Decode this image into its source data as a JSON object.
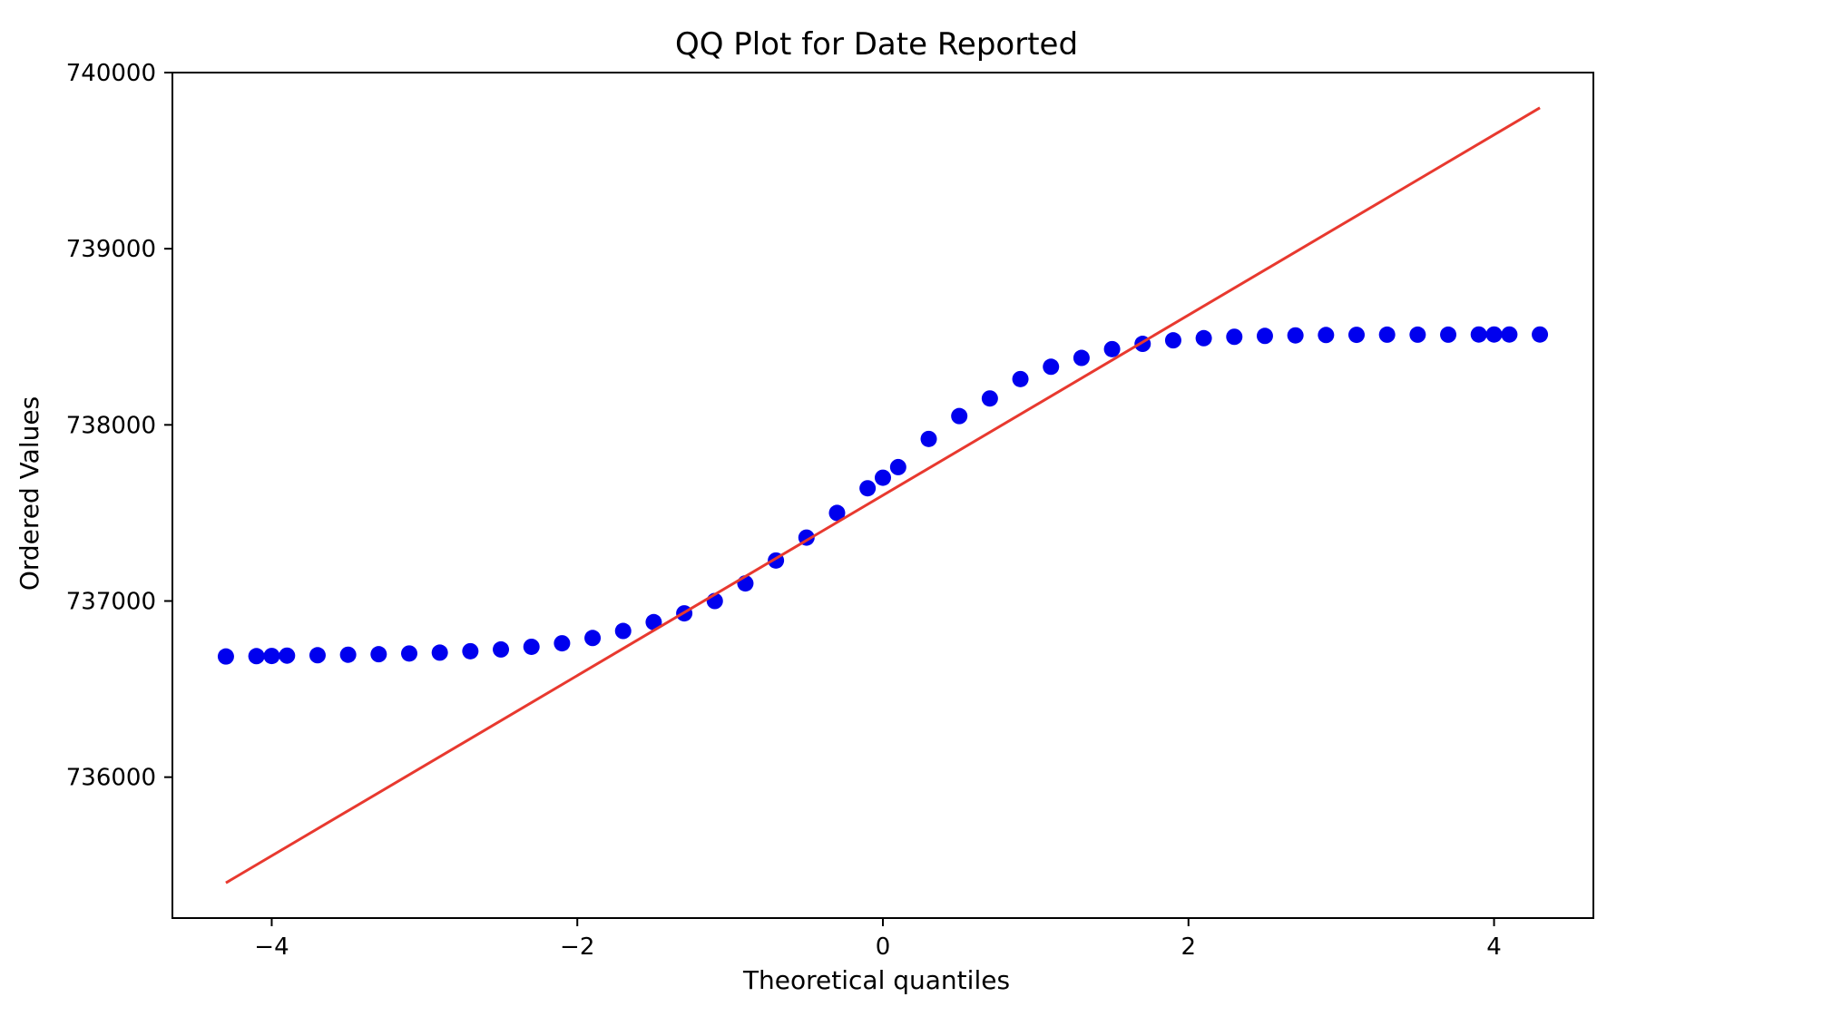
{
  "chart_data": {
    "type": "scatter",
    "title": "QQ Plot for Date Reported",
    "xlabel": "Theoretical quantiles",
    "ylabel": "Ordered Values",
    "xlim": [
      -4.65,
      4.65
    ],
    "ylim": [
      735200,
      740000
    ],
    "xticks": [
      -4,
      -2,
      0,
      2,
      4
    ],
    "xtick_labels": [
      "−4",
      "−2",
      "0",
      "2",
      "4"
    ],
    "yticks": [
      736000,
      737000,
      738000,
      739000,
      740000
    ],
    "ytick_labels": [
      "736000",
      "737000",
      "738000",
      "739000",
      "740000"
    ],
    "grid": false,
    "legend": "none",
    "series": [
      {
        "kind": "points",
        "color": "#0000ee",
        "x": [
          -4.3,
          -4.1,
          -4.0,
          -3.9,
          -3.7,
          -3.5,
          -3.3,
          -3.1,
          -2.9,
          -2.7,
          -2.5,
          -2.3,
          -2.1,
          -1.9,
          -1.7,
          -1.5,
          -1.3,
          -1.1,
          -0.9,
          -0.7,
          -0.5,
          -0.3,
          -0.1,
          0.0,
          0.1,
          0.3,
          0.5,
          0.7,
          0.9,
          1.1,
          1.3,
          1.5,
          1.7,
          1.9,
          2.1,
          2.3,
          2.5,
          2.7,
          2.9,
          3.1,
          3.3,
          3.5,
          3.7,
          3.9,
          4.0,
          4.1,
          4.3
        ],
        "y": [
          736685,
          736687,
          736688,
          736690,
          736692,
          736695,
          736698,
          736702,
          736707,
          736715,
          736725,
          736740,
          736760,
          736790,
          736830,
          736880,
          736930,
          737000,
          737100,
          737230,
          737360,
          737500,
          737640,
          737700,
          737760,
          737920,
          738050,
          738150,
          738260,
          738330,
          738380,
          738430,
          738460,
          738480,
          738492,
          738500,
          738505,
          738508,
          738510,
          738511,
          738512,
          738512,
          738512,
          738513,
          738513,
          738513,
          738513
        ]
      },
      {
        "kind": "line",
        "color": "#e8392f",
        "x": [
          -4.3,
          4.3
        ],
        "y": [
          735400,
          739800
        ]
      }
    ]
  }
}
